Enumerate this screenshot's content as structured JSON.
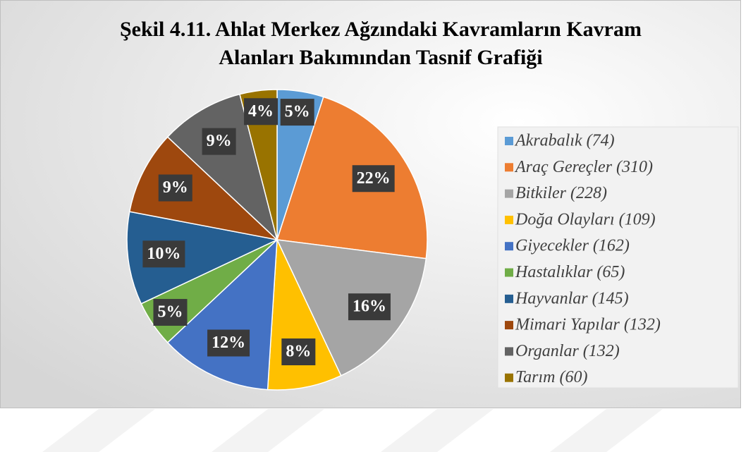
{
  "chart_data": {
    "type": "pie",
    "title": "Şekil 4.11. Ahlat Merkez Ağzındaki Kavramların Kavram Alanları Bakımından Tasnif Grafiği",
    "categories": [
      "Akrabalık (74)",
      "Araç Gereçler (310)",
      "Bitkiler (228)",
      "Doğa Olayları (109)",
      "Giyecekler (162)",
      "Hastalıklar (65)",
      "Hayvanlar (145)",
      "Mimari Yapılar (132)",
      "Organlar (132)",
      "Tarım (60)"
    ],
    "values": [
      5,
      22,
      16,
      8,
      12,
      5,
      10,
      9,
      9,
      4
    ],
    "value_labels": [
      "5%",
      "22%",
      "16%",
      "8%",
      "12%",
      "5%",
      "10%",
      "9%",
      "9%",
      "4%"
    ],
    "colors": [
      "#5b9bd5",
      "#ed7d31",
      "#a5a5a5",
      "#ffc000",
      "#4472c4",
      "#70ad47",
      "#255e91",
      "#9e480e",
      "#636363",
      "#997300"
    ],
    "legend": "right"
  }
}
